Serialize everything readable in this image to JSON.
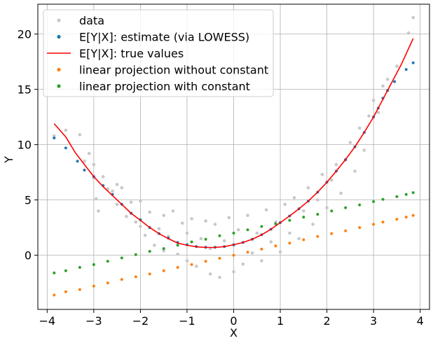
{
  "chart_data": {
    "type": "scatter",
    "xlabel": "X",
    "ylabel": "Y",
    "xlim": [
      -4.2,
      4.2
    ],
    "ylim": [
      -4.9,
      22.7
    ],
    "xticks": [
      -4,
      -3,
      -2,
      -1,
      0,
      1,
      2,
      3,
      4
    ],
    "yticks": [
      0,
      5,
      10,
      15,
      20
    ],
    "grid": true,
    "legend_position": "top-left",
    "series": [
      {
        "name": "data",
        "kind": "scatter",
        "color": "#c8c8c8",
        "points": [
          [
            -3.85,
            10.8
          ],
          [
            -3.6,
            11.3
          ],
          [
            -3.3,
            10.9
          ],
          [
            -3.2,
            8.5
          ],
          [
            -3.1,
            9.2
          ],
          [
            -3.0,
            8.2
          ],
          [
            -3.0,
            7.0
          ],
          [
            -2.9,
            4.0
          ],
          [
            -2.8,
            7.1
          ],
          [
            -2.7,
            6.0
          ],
          [
            -2.6,
            5.8
          ],
          [
            -2.5,
            6.4
          ],
          [
            -2.5,
            4.6
          ],
          [
            -2.4,
            6.1
          ],
          [
            -2.3,
            3.5
          ],
          [
            -2.2,
            4.8
          ],
          [
            -2.1,
            3.0
          ],
          [
            -2.0,
            4.9
          ],
          [
            -2.0,
            2.6
          ],
          [
            -1.9,
            1.8
          ],
          [
            -1.8,
            3.9
          ],
          [
            -1.7,
            0.9
          ],
          [
            -1.6,
            2.4
          ],
          [
            -1.5,
            3.6
          ],
          [
            -1.5,
            0.4
          ],
          [
            -1.4,
            1.7
          ],
          [
            -1.3,
            4.0
          ],
          [
            -1.2,
            0.1
          ],
          [
            -1.1,
            2.9
          ],
          [
            -1.0,
            -0.5
          ],
          [
            -1.0,
            2.0
          ],
          [
            -0.9,
            3.3
          ],
          [
            -0.8,
            -1.0
          ],
          [
            -0.7,
            1.5
          ],
          [
            -0.6,
            3.1
          ],
          [
            -0.5,
            -1.7
          ],
          [
            -0.5,
            0.6
          ],
          [
            -0.4,
            2.8
          ],
          [
            -0.3,
            -2.0
          ],
          [
            -0.2,
            1.3
          ],
          [
            -0.1,
            3.4
          ],
          [
            0.0,
            -1.5
          ],
          [
            0.0,
            0.9
          ],
          [
            0.1,
            2.3
          ],
          [
            0.2,
            -0.8
          ],
          [
            0.3,
            3.6
          ],
          [
            0.4,
            0.2
          ],
          [
            0.5,
            2.0
          ],
          [
            0.6,
            -0.5
          ],
          [
            0.7,
            4.1
          ],
          [
            0.8,
            1.2
          ],
          [
            0.9,
            3.0
          ],
          [
            1.0,
            0.3
          ],
          [
            1.1,
            4.6
          ],
          [
            1.2,
            2.0
          ],
          [
            1.3,
            5.2
          ],
          [
            1.4,
            1.5
          ],
          [
            1.5,
            4.0
          ],
          [
            1.6,
            6.1
          ],
          [
            1.7,
            2.8
          ],
          [
            1.8,
            5.0
          ],
          [
            1.9,
            7.3
          ],
          [
            2.0,
            4.3
          ],
          [
            2.1,
            6.8
          ],
          [
            2.2,
            8.2
          ],
          [
            2.3,
            5.6
          ],
          [
            2.4,
            8.6
          ],
          [
            2.5,
            10.2
          ],
          [
            2.6,
            7.6
          ],
          [
            2.7,
            11.5
          ],
          [
            2.8,
            9.5
          ],
          [
            2.9,
            12.6
          ],
          [
            3.0,
            14.0
          ],
          [
            3.1,
            12.9
          ],
          [
            3.2,
            15.3
          ],
          [
            3.3,
            15.9
          ],
          [
            3.5,
            17.1
          ],
          [
            3.75,
            20.1
          ],
          [
            3.85,
            21.5
          ],
          [
            -2.95,
            5.1
          ]
        ]
      },
      {
        "name": "E[Y|X]: estimate (via LOWESS)",
        "kind": "scatter",
        "color": "#1f77b4",
        "points": [
          [
            -3.85,
            10.6
          ],
          [
            -3.6,
            9.7
          ],
          [
            -3.35,
            8.5
          ],
          [
            -3.2,
            7.7
          ],
          [
            -3.0,
            7.1
          ],
          [
            -2.8,
            6.3
          ],
          [
            -2.6,
            5.5
          ],
          [
            -2.4,
            4.6
          ],
          [
            -2.2,
            3.8
          ],
          [
            -2.0,
            3.2
          ],
          [
            -1.8,
            2.5
          ],
          [
            -1.6,
            1.95
          ],
          [
            -1.4,
            1.55
          ],
          [
            -1.2,
            1.15
          ],
          [
            -1.0,
            0.95
          ],
          [
            -0.8,
            0.78
          ],
          [
            -0.6,
            0.72
          ],
          [
            -0.4,
            0.72
          ],
          [
            -0.2,
            0.78
          ],
          [
            0.0,
            0.95
          ],
          [
            0.2,
            1.15
          ],
          [
            0.4,
            1.45
          ],
          [
            0.6,
            1.85
          ],
          [
            0.8,
            2.35
          ],
          [
            1.0,
            2.95
          ],
          [
            1.2,
            3.55
          ],
          [
            1.4,
            4.2
          ],
          [
            1.6,
            4.9
          ],
          [
            1.8,
            5.7
          ],
          [
            2.0,
            6.6
          ],
          [
            2.2,
            7.6
          ],
          [
            2.4,
            8.65
          ],
          [
            2.6,
            9.8
          ],
          [
            2.8,
            11.1
          ],
          [
            3.0,
            12.5
          ],
          [
            3.1,
            13.3
          ],
          [
            3.2,
            14.2
          ],
          [
            3.3,
            14.9
          ],
          [
            3.45,
            15.7
          ],
          [
            3.7,
            16.8
          ],
          [
            3.85,
            17.4
          ]
        ]
      },
      {
        "name": "E[Y|X]: true values",
        "kind": "line",
        "color": "#ff0000",
        "points": [
          [
            -3.85,
            11.9
          ],
          [
            -3.6,
            10.7
          ],
          [
            -3.4,
            9.3
          ],
          [
            -3.2,
            8.2
          ],
          [
            -3.0,
            7.1
          ],
          [
            -2.8,
            6.2
          ],
          [
            -2.6,
            5.4
          ],
          [
            -2.4,
            4.6
          ],
          [
            -2.2,
            3.8
          ],
          [
            -2.0,
            3.15
          ],
          [
            -1.8,
            2.5
          ],
          [
            -1.6,
            1.95
          ],
          [
            -1.4,
            1.5
          ],
          [
            -1.2,
            1.1
          ],
          [
            -1.0,
            0.9
          ],
          [
            -0.8,
            0.76
          ],
          [
            -0.6,
            0.7
          ],
          [
            -0.4,
            0.7
          ],
          [
            -0.2,
            0.78
          ],
          [
            0.0,
            0.95
          ],
          [
            0.2,
            1.15
          ],
          [
            0.4,
            1.45
          ],
          [
            0.6,
            1.85
          ],
          [
            0.8,
            2.35
          ],
          [
            1.0,
            2.95
          ],
          [
            1.2,
            3.55
          ],
          [
            1.4,
            4.2
          ],
          [
            1.6,
            4.9
          ],
          [
            1.8,
            5.7
          ],
          [
            2.0,
            6.6
          ],
          [
            2.2,
            7.6
          ],
          [
            2.4,
            8.65
          ],
          [
            2.6,
            9.8
          ],
          [
            2.8,
            11.1
          ],
          [
            3.0,
            12.5
          ],
          [
            3.2,
            14.1
          ],
          [
            3.4,
            15.7
          ],
          [
            3.6,
            17.3
          ],
          [
            3.85,
            19.6
          ]
        ]
      },
      {
        "name": "linear projection without constant",
        "kind": "scatter",
        "color": "#ff7f0e",
        "points": [
          [
            -3.85,
            -3.6
          ],
          [
            -3.6,
            -3.3
          ],
          [
            -3.3,
            -3.1
          ],
          [
            -3.0,
            -2.8
          ],
          [
            -2.7,
            -2.5
          ],
          [
            -2.4,
            -2.2
          ],
          [
            -2.1,
            -1.95
          ],
          [
            -1.8,
            -1.7
          ],
          [
            -1.5,
            -1.4
          ],
          [
            -1.2,
            -1.1
          ],
          [
            -0.9,
            -0.85
          ],
          [
            -0.6,
            -0.55
          ],
          [
            -0.3,
            -0.28
          ],
          [
            0.0,
            0.0
          ],
          [
            0.3,
            0.28
          ],
          [
            0.6,
            0.55
          ],
          [
            0.9,
            0.85
          ],
          [
            1.2,
            1.1
          ],
          [
            1.5,
            1.4
          ],
          [
            1.8,
            1.7
          ],
          [
            2.1,
            1.95
          ],
          [
            2.4,
            2.2
          ],
          [
            2.7,
            2.5
          ],
          [
            3.0,
            2.8
          ],
          [
            3.2,
            3.0
          ],
          [
            3.5,
            3.25
          ],
          [
            3.7,
            3.45
          ],
          [
            3.85,
            3.6
          ]
        ]
      },
      {
        "name": "linear projection with constant",
        "kind": "scatter",
        "color": "#2ca02c",
        "points": [
          [
            -3.85,
            -1.6
          ],
          [
            -3.6,
            -1.4
          ],
          [
            -3.3,
            -1.1
          ],
          [
            -3.0,
            -0.85
          ],
          [
            -2.7,
            -0.55
          ],
          [
            -2.4,
            -0.25
          ],
          [
            -2.1,
            0.05
          ],
          [
            -1.8,
            0.35
          ],
          [
            -1.5,
            0.6
          ],
          [
            -1.2,
            0.9
          ],
          [
            -0.9,
            1.2
          ],
          [
            -0.6,
            1.45
          ],
          [
            -0.3,
            1.75
          ],
          [
            0.0,
            2.0
          ],
          [
            0.3,
            2.3
          ],
          [
            0.6,
            2.6
          ],
          [
            0.9,
            2.85
          ],
          [
            1.2,
            3.15
          ],
          [
            1.5,
            3.45
          ],
          [
            1.8,
            3.7
          ],
          [
            2.1,
            4.0
          ],
          [
            2.4,
            4.3
          ],
          [
            2.7,
            4.55
          ],
          [
            3.0,
            4.85
          ],
          [
            3.2,
            5.05
          ],
          [
            3.5,
            5.3
          ],
          [
            3.7,
            5.5
          ],
          [
            3.85,
            5.65
          ]
        ]
      }
    ]
  }
}
